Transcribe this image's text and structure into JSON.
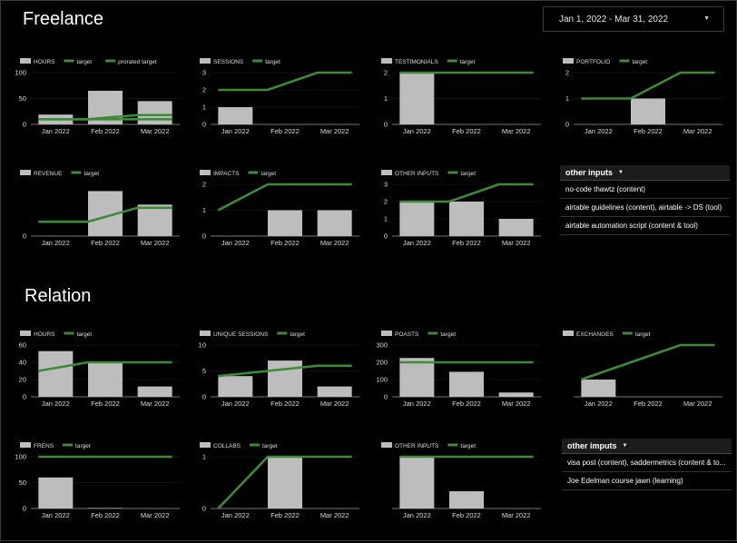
{
  "colors": {
    "bar": "#bdbdbd",
    "target": "#3d8b37",
    "axis": "#9e9e9e",
    "background": "#000000"
  },
  "date_range": {
    "label": "Jan 1, 2022 - Mar 31, 2022",
    "caret_icon": "chevron-down-icon"
  },
  "freelance": {
    "title": "Freelance",
    "charts": [
      {
        "id": "fl-hours",
        "title": "HOURS",
        "legend": [
          "HOURS",
          "target",
          "prorated target"
        ],
        "categories": [
          "Jan 2022",
          "Feb 2022",
          "Mar 2022"
        ],
        "values": [
          19,
          65,
          45
        ],
        "target": [
          10,
          10,
          18
        ],
        "prorated": [
          10,
          10,
          10
        ],
        "yticks": [
          0,
          50,
          100
        ],
        "ymax": 100
      },
      {
        "id": "fl-sessions",
        "title": "SESSIONS",
        "legend": [
          "SESSIONS",
          "target"
        ],
        "categories": [
          "Jan 2022",
          "Feb 2022",
          "Mar 2022"
        ],
        "values": [
          1,
          0,
          0
        ],
        "target": [
          2,
          2,
          3
        ],
        "yticks": [
          0,
          1,
          2,
          3
        ],
        "ymax": 3
      },
      {
        "id": "fl-testimonials",
        "title": "TESTIMONIALS",
        "legend": [
          "TESTIMONIALS",
          "target"
        ],
        "categories": [
          "Jan 2022",
          "Feb 2022",
          "Mar 2022"
        ],
        "values": [
          2,
          0,
          0
        ],
        "target": [
          2,
          2,
          2
        ],
        "yticks": [
          0,
          1,
          2
        ],
        "ymax": 2
      },
      {
        "id": "fl-portfolio",
        "title": "PORTFOLIO",
        "legend": [
          "PORTFOLIO",
          "target"
        ],
        "categories": [
          "Jan 2022",
          "Feb 2022",
          "Mar 2022"
        ],
        "values": [
          0,
          1,
          0
        ],
        "target": [
          1,
          1,
          2
        ],
        "yticks": [
          0,
          1,
          2
        ],
        "ymax": 2
      },
      {
        "id": "fl-revenue",
        "title": "REVENUE",
        "legend": [
          "REVENUE",
          "target"
        ],
        "categories": [
          "Jan 2022",
          "Feb 2022",
          "Mar 2022"
        ],
        "values": [
          0,
          100,
          70
        ],
        "target": [
          32,
          32,
          63
        ],
        "yticks": [
          0
        ],
        "ymax": 115
      },
      {
        "id": "fl-impacts",
        "title": "IMPACTS",
        "legend": [
          "IMPACTS",
          "target"
        ],
        "categories": [
          "Jan 2022",
          "Feb 2022",
          "Mar 2022"
        ],
        "values": [
          0,
          1,
          1
        ],
        "target": [
          1,
          2,
          2
        ],
        "yticks": [
          0,
          1,
          2
        ],
        "ymax": 2
      },
      {
        "id": "fl-other",
        "title": "OTHER INPUTS",
        "legend": [
          "OTHER INPUTS",
          "target"
        ],
        "categories": [
          "Jan 2022",
          "Feb 2022",
          "Mar 2022"
        ],
        "values": [
          2,
          2,
          1
        ],
        "target": [
          2,
          2,
          3
        ],
        "yticks": [
          0,
          1,
          2,
          3
        ],
        "ymax": 3
      }
    ],
    "table": {
      "header": "other inputs",
      "rows": [
        "no-code thawtz (content)",
        "airtable guidelines (content), airtable -> DS (tool)",
        "airtable automation script (content & tool)"
      ]
    }
  },
  "relation": {
    "title": "Relation",
    "charts": [
      {
        "id": "rl-hours",
        "title": "HOURS",
        "legend": [
          "HOURS",
          "target"
        ],
        "categories": [
          "Jan 2022",
          "Feb 2022",
          "Mar 2022"
        ],
        "values": [
          53,
          40,
          12
        ],
        "target": [
          30,
          40,
          40
        ],
        "yticks": [
          0,
          20,
          40,
          60
        ],
        "ymax": 60
      },
      {
        "id": "rl-unique",
        "title": "UNIQUE SESSIONS",
        "legend": [
          "UNIQUE SESSIONS",
          "target"
        ],
        "categories": [
          "Jan 2022",
          "Feb 2022",
          "Mar 2022"
        ],
        "values": [
          4,
          7,
          2
        ],
        "target": [
          4,
          5,
          6
        ],
        "yticks": [
          0,
          5,
          10
        ],
        "ymax": 10
      },
      {
        "id": "rl-poasts",
        "title": "POASTS",
        "legend": [
          "POASTS",
          "target"
        ],
        "categories": [
          "Jan 2022",
          "Feb 2022",
          "Mar 2022"
        ],
        "values": [
          225,
          145,
          25
        ],
        "target": [
          200,
          200,
          200
        ],
        "yticks": [
          0,
          100,
          200,
          300
        ],
        "ymax": 300
      },
      {
        "id": "rl-exchanges",
        "title": "EXCHANGES",
        "legend": [
          "EXCHANGES",
          "target"
        ],
        "categories": [
          "Jan 2022",
          "Feb 2022",
          "Mar 2022"
        ],
        "values": [
          1,
          0,
          0
        ],
        "target": [
          1,
          2,
          3
        ],
        "yticks": [],
        "ymax": 3
      },
      {
        "id": "rl-frens",
        "title": "FRENS",
        "legend": [
          "FRENS",
          "target"
        ],
        "categories": [
          "Jan 2022",
          "Feb 2022",
          "Mar 2022"
        ],
        "values": [
          60,
          1,
          0
        ],
        "target": [
          100,
          100,
          100
        ],
        "yticks": [
          0,
          50,
          100
        ],
        "ymax": 100
      },
      {
        "id": "rl-collabs",
        "title": "COLLABS",
        "legend": [
          "COLLABS",
          "target"
        ],
        "categories": [
          "Jan 2022",
          "Feb 2022",
          "Mar 2022"
        ],
        "values": [
          0,
          1,
          0
        ],
        "target": [
          0,
          1,
          1
        ],
        "yticks": [
          0,
          1
        ],
        "ymax": 1
      },
      {
        "id": "rl-other",
        "title": "OTHER INPUTS",
        "legend": [
          "OTHER INPUTS",
          "target"
        ],
        "categories": [
          "Jan 2022",
          "Feb 2022",
          "Mar 2022"
        ],
        "values": [
          3,
          1,
          0
        ],
        "target": [
          3,
          3,
          3
        ],
        "yticks": [],
        "ymax": 3
      }
    ],
    "table": {
      "header": "other imputs",
      "rows": [
        "visa post (content), saddermetrics (content & to...",
        "Joe Edelman course jawn (learning)"
      ]
    }
  }
}
